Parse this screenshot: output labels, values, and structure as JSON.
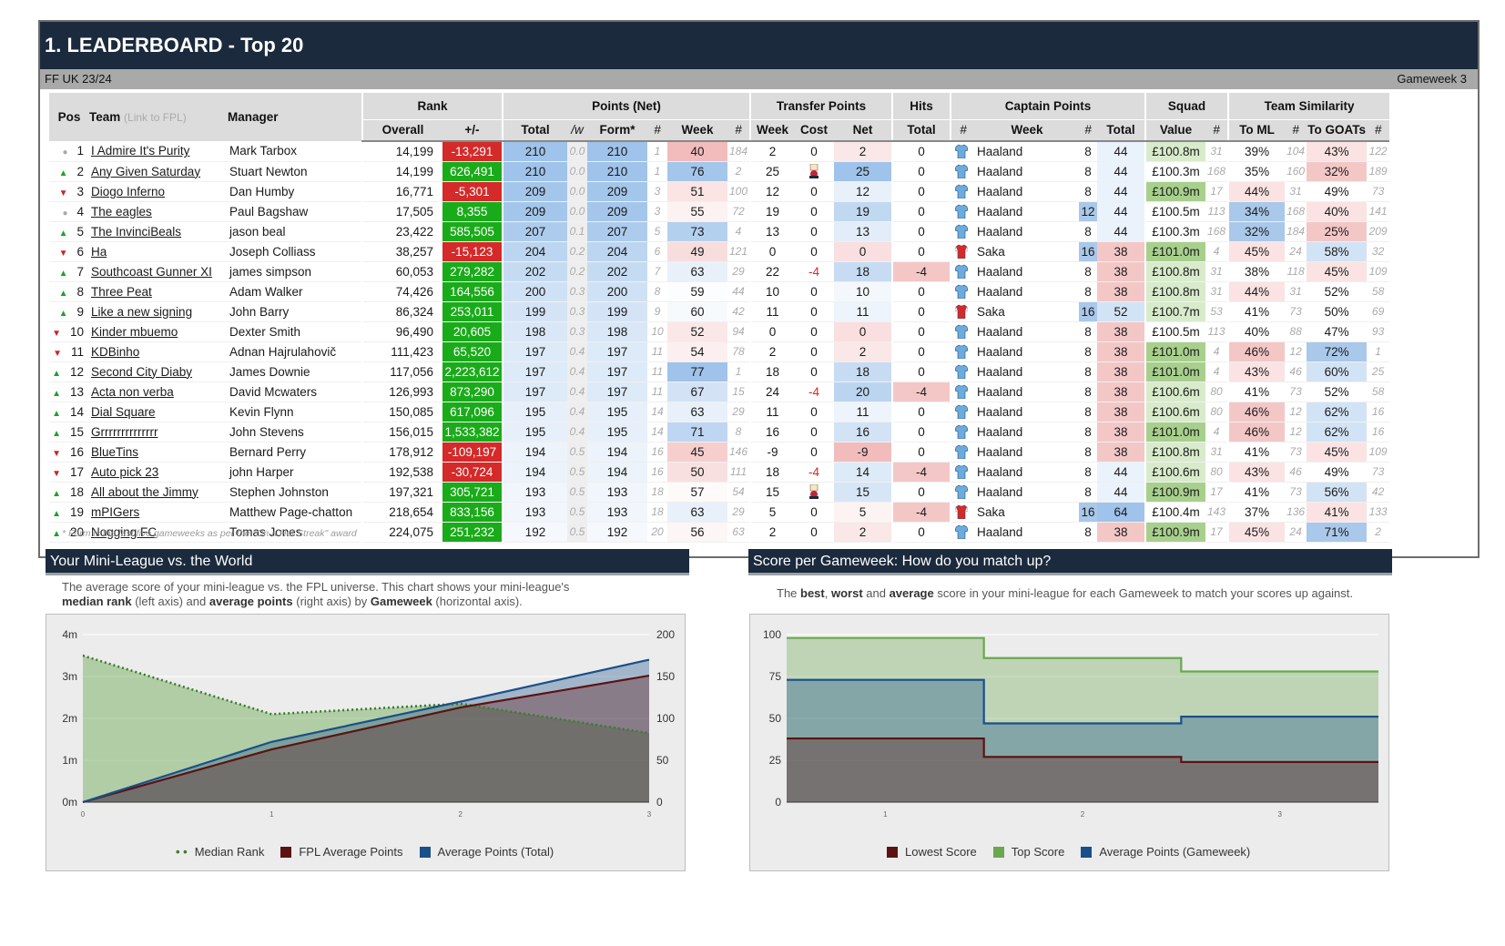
{
  "header": {
    "title": "1. LEADERBOARD - Top 20",
    "league": "FF UK 23/24",
    "gameweek": "Gameweek 3"
  },
  "columns": {
    "pos": "Pos",
    "team": "Team",
    "team_hint": "(Link to FPL)",
    "manager": "Manager",
    "rank": "Rank",
    "overall": "Overall",
    "plusminus": "+/-",
    "points": "Points (Net)",
    "total": "Total",
    "per_w": "/w",
    "form": "Form*",
    "hash": "#",
    "week": "Week",
    "transfer": "Transfer Points",
    "t_week": "Week",
    "t_cost": "Cost",
    "t_net": "Net",
    "hits": "Hits",
    "hits_total": "Total",
    "captain": "Captain Points",
    "c_week": "Week",
    "c_total": "Total",
    "squad": "Squad",
    "value": "Value",
    "similarity": "Team Similarity",
    "to_ml": "To ML",
    "to_goats": "To GOATs"
  },
  "rows": [
    {
      "pos": "1",
      "mv": "eq",
      "team": "I Admire It's Purity",
      "manager": "Mark Tarbox",
      "overall": "14,199",
      "delta": "-13,291",
      "total": "210",
      "pw": "0.0",
      "form": "210",
      "fr": "1",
      "week": "40",
      "wr": "184",
      "tw": "2",
      "tc": "0",
      "tn": "2",
      "hits": "0",
      "cap": "Haaland",
      "cw": "8",
      "ct": "44",
      "val": "£100.8m",
      "vr": "31",
      "ml": "39%",
      "mlr": "104",
      "gt": "43%",
      "gtr": "122"
    },
    {
      "pos": "2",
      "mv": "up",
      "team": "Any Given Saturday",
      "manager": "Stuart Newton",
      "overall": "14,199",
      "delta": "626,491",
      "total": "210",
      "pw": "0.0",
      "form": "210",
      "fr": "1",
      "week": "76",
      "wr": "2",
      "tw": "25",
      "tc": "wc",
      "tn": "25",
      "hits": "0",
      "cap": "Haaland",
      "cw": "8",
      "ct": "44",
      "val": "£100.3m",
      "vr": "168",
      "ml": "35%",
      "mlr": "160",
      "gt": "32%",
      "gtr": "189"
    },
    {
      "pos": "3",
      "mv": "dn",
      "team": "Diogo Inferno",
      "manager": "Dan Humby",
      "overall": "16,771",
      "delta": "-5,301",
      "total": "209",
      "pw": "0.0",
      "form": "209",
      "fr": "3",
      "week": "51",
      "wr": "100",
      "tw": "12",
      "tc": "0",
      "tn": "12",
      "hits": "0",
      "cap": "Haaland",
      "cw": "8",
      "ct": "44",
      "val": "£100.9m",
      "vr": "17",
      "ml": "44%",
      "mlr": "31",
      "gt": "49%",
      "gtr": "73"
    },
    {
      "pos": "4",
      "mv": "eq",
      "team": "The eagles",
      "manager": "Paul Bagshaw",
      "overall": "17,505",
      "delta": "8,355",
      "total": "209",
      "pw": "0.0",
      "form": "209",
      "fr": "3",
      "week": "55",
      "wr": "72",
      "tw": "19",
      "tc": "0",
      "tn": "19",
      "hits": "0",
      "cap": "Haaland",
      "cw": "12",
      "ct": "44",
      "val": "£100.5m",
      "vr": "113",
      "ml": "34%",
      "mlr": "168",
      "gt": "40%",
      "gtr": "141"
    },
    {
      "pos": "5",
      "mv": "up",
      "team": "The InvinciBeals",
      "manager": "jason beal",
      "overall": "23,422",
      "delta": "585,505",
      "total": "207",
      "pw": "0.1",
      "form": "207",
      "fr": "5",
      "week": "73",
      "wr": "4",
      "tw": "13",
      "tc": "0",
      "tn": "13",
      "hits": "0",
      "cap": "Haaland",
      "cw": "8",
      "ct": "44",
      "val": "£100.3m",
      "vr": "168",
      "ml": "32%",
      "mlr": "184",
      "gt": "25%",
      "gtr": "209"
    },
    {
      "pos": "6",
      "mv": "dn",
      "team": "Ha",
      "manager": "Joseph Colliass",
      "overall": "38,257",
      "delta": "-15,123",
      "total": "204",
      "pw": "0.2",
      "form": "204",
      "fr": "6",
      "week": "49",
      "wr": "121",
      "tw": "0",
      "tc": "0",
      "tn": "0",
      "hits": "0",
      "cap": "Saka",
      "cw": "16",
      "ct": "38",
      "val": "£101.0m",
      "vr": "4",
      "ml": "45%",
      "mlr": "24",
      "gt": "58%",
      "gtr": "32"
    },
    {
      "pos": "7",
      "mv": "up",
      "team": "Southcoast Gunner XI",
      "manager": "james simpson",
      "overall": "60,053",
      "delta": "279,282",
      "total": "202",
      "pw": "0.2",
      "form": "202",
      "fr": "7",
      "week": "63",
      "wr": "29",
      "tw": "22",
      "tc": "-4",
      "tn": "18",
      "hits": "-4",
      "cap": "Haaland",
      "cw": "8",
      "ct": "38",
      "val": "£100.8m",
      "vr": "31",
      "ml": "38%",
      "mlr": "118",
      "gt": "45%",
      "gtr": "109"
    },
    {
      "pos": "8",
      "mv": "up",
      "team": "Three Peat",
      "manager": "Adam Walker",
      "overall": "74,426",
      "delta": "164,556",
      "total": "200",
      "pw": "0.3",
      "form": "200",
      "fr": "8",
      "week": "59",
      "wr": "44",
      "tw": "10",
      "tc": "0",
      "tn": "10",
      "hits": "0",
      "cap": "Haaland",
      "cw": "8",
      "ct": "38",
      "val": "£100.8m",
      "vr": "31",
      "ml": "44%",
      "mlr": "31",
      "gt": "52%",
      "gtr": "58"
    },
    {
      "pos": "9",
      "mv": "up",
      "team": "Like a new signing",
      "manager": "John Barry",
      "overall": "86,324",
      "delta": "253,011",
      "total": "199",
      "pw": "0.3",
      "form": "199",
      "fr": "9",
      "week": "60",
      "wr": "42",
      "tw": "11",
      "tc": "0",
      "tn": "11",
      "hits": "0",
      "cap": "Saka",
      "cw": "16",
      "ct": "52",
      "val": "£100.7m",
      "vr": "53",
      "ml": "41%",
      "mlr": "73",
      "gt": "50%",
      "gtr": "69"
    },
    {
      "pos": "10",
      "mv": "dn",
      "team": "Kinder mbuemo",
      "manager": "Dexter Smith",
      "overall": "96,490",
      "delta": "20,605",
      "total": "198",
      "pw": "0.3",
      "form": "198",
      "fr": "10",
      "week": "52",
      "wr": "94",
      "tw": "0",
      "tc": "0",
      "tn": "0",
      "hits": "0",
      "cap": "Haaland",
      "cw": "8",
      "ct": "38",
      "val": "£100.5m",
      "vr": "113",
      "ml": "40%",
      "mlr": "88",
      "gt": "47%",
      "gtr": "93"
    },
    {
      "pos": "11",
      "mv": "dn",
      "team": "KDBinho",
      "manager": "Adnan Hajrulahovič",
      "overall": "111,423",
      "delta": "65,520",
      "total": "197",
      "pw": "0.4",
      "form": "197",
      "fr": "11",
      "week": "54",
      "wr": "78",
      "tw": "2",
      "tc": "0",
      "tn": "2",
      "hits": "0",
      "cap": "Haaland",
      "cw": "8",
      "ct": "38",
      "val": "£101.0m",
      "vr": "4",
      "ml": "46%",
      "mlr": "12",
      "gt": "72%",
      "gtr": "1"
    },
    {
      "pos": "12",
      "mv": "up",
      "team": "Second City Diaby",
      "manager": "James Downie",
      "overall": "117,056",
      "delta": "2,223,612",
      "total": "197",
      "pw": "0.4",
      "form": "197",
      "fr": "11",
      "week": "77",
      "wr": "1",
      "tw": "18",
      "tc": "0",
      "tn": "18",
      "hits": "0",
      "cap": "Haaland",
      "cw": "8",
      "ct": "38",
      "val": "£101.0m",
      "vr": "4",
      "ml": "43%",
      "mlr": "46",
      "gt": "60%",
      "gtr": "25"
    },
    {
      "pos": "13",
      "mv": "up",
      "team": "Acta non verba",
      "manager": "David Mcwaters",
      "overall": "126,993",
      "delta": "873,290",
      "total": "197",
      "pw": "0.4",
      "form": "197",
      "fr": "11",
      "week": "67",
      "wr": "15",
      "tw": "24",
      "tc": "-4",
      "tn": "20",
      "hits": "-4",
      "cap": "Haaland",
      "cw": "8",
      "ct": "38",
      "val": "£100.6m",
      "vr": "80",
      "ml": "41%",
      "mlr": "73",
      "gt": "52%",
      "gtr": "58"
    },
    {
      "pos": "14",
      "mv": "up",
      "team": "Dial Square",
      "manager": "Kevin Flynn",
      "overall": "150,085",
      "delta": "617,096",
      "total": "195",
      "pw": "0.4",
      "form": "195",
      "fr": "14",
      "week": "63",
      "wr": "29",
      "tw": "11",
      "tc": "0",
      "tn": "11",
      "hits": "0",
      "cap": "Haaland",
      "cw": "8",
      "ct": "38",
      "val": "£100.6m",
      "vr": "80",
      "ml": "46%",
      "mlr": "12",
      "gt": "62%",
      "gtr": "16"
    },
    {
      "pos": "15",
      "mv": "up",
      "team": "Grrrrrrrrrrrrrr",
      "manager": "John Stevens",
      "overall": "156,015",
      "delta": "1,533,382",
      "total": "195",
      "pw": "0.4",
      "form": "195",
      "fr": "14",
      "week": "71",
      "wr": "8",
      "tw": "16",
      "tc": "0",
      "tn": "16",
      "hits": "0",
      "cap": "Haaland",
      "cw": "8",
      "ct": "38",
      "val": "£101.0m",
      "vr": "4",
      "ml": "46%",
      "mlr": "12",
      "gt": "62%",
      "gtr": "16"
    },
    {
      "pos": "16",
      "mv": "dn",
      "team": "BlueTins",
      "manager": "Bernard Perry",
      "overall": "178,912",
      "delta": "-109,197",
      "total": "194",
      "pw": "0.5",
      "form": "194",
      "fr": "16",
      "week": "45",
      "wr": "146",
      "tw": "-9",
      "tc": "0",
      "tn": "-9",
      "hits": "0",
      "cap": "Haaland",
      "cw": "8",
      "ct": "38",
      "val": "£100.8m",
      "vr": "31",
      "ml": "41%",
      "mlr": "73",
      "gt": "45%",
      "gtr": "109"
    },
    {
      "pos": "17",
      "mv": "dn",
      "team": "Auto pick 23",
      "manager": "john Harper",
      "overall": "192,538",
      "delta": "-30,724",
      "total": "194",
      "pw": "0.5",
      "form": "194",
      "fr": "16",
      "week": "50",
      "wr": "111",
      "tw": "18",
      "tc": "-4",
      "tn": "14",
      "hits": "-4",
      "cap": "Haaland",
      "cw": "8",
      "ct": "44",
      "val": "£100.6m",
      "vr": "80",
      "ml": "43%",
      "mlr": "46",
      "gt": "49%",
      "gtr": "73"
    },
    {
      "pos": "18",
      "mv": "up",
      "team": "All about the Jimmy",
      "manager": "Stephen Johnston",
      "overall": "197,321",
      "delta": "305,721",
      "total": "193",
      "pw": "0.5",
      "form": "193",
      "fr": "18",
      "week": "57",
      "wr": "54",
      "tw": "15",
      "tc": "wc",
      "tn": "15",
      "hits": "0",
      "cap": "Haaland",
      "cw": "8",
      "ct": "44",
      "val": "£100.9m",
      "vr": "17",
      "ml": "41%",
      "mlr": "73",
      "gt": "56%",
      "gtr": "42"
    },
    {
      "pos": "19",
      "mv": "up",
      "team": "mPIGers",
      "manager": "Matthew Page-chatton",
      "overall": "218,654",
      "delta": "833,156",
      "total": "193",
      "pw": "0.5",
      "form": "193",
      "fr": "18",
      "week": "63",
      "wr": "29",
      "tw": "5",
      "tc": "0",
      "tn": "5",
      "hits": "-4",
      "cap": "Saka",
      "cw": "16",
      "ct": "64",
      "val": "£100.4m",
      "vr": "143",
      "ml": "37%",
      "mlr": "136",
      "gt": "41%",
      "gtr": "133"
    },
    {
      "pos": "20",
      "mv": "up",
      "team": "Nogging FC",
      "manager": "Tomas Jones",
      "overall": "224,075",
      "delta": "251,232",
      "total": "192",
      "pw": "0.5",
      "form": "192",
      "fr": "20",
      "week": "56",
      "wr": "63",
      "tw": "2",
      "tc": "0",
      "tn": "2",
      "hits": "0",
      "cap": "Haaland",
      "cw": "8",
      "ct": "38",
      "val": "£100.9m",
      "vr": "17",
      "ml": "45%",
      "mlr": "24",
      "gt": "71%",
      "gtr": "2"
    }
  ],
  "footnote": "* Form is the last five gameweeks as per the \"On a Hot Streak\" award",
  "panel_left": {
    "title": "Your Mini-League vs. the World",
    "desc_a": "The average score of your mini-league vs. the FPL universe. This chart shows your mini-league's",
    "desc_b1": "median rank",
    "desc_b2": " (left axis) and ",
    "desc_b3": "average points",
    "desc_b4": " (right axis) by ",
    "desc_b5": "Gameweek",
    "desc_b6": " (horizontal axis)."
  },
  "panel_right": {
    "title": "Score per Gameweek: How do you match up?",
    "desc1": "The ",
    "desc2": "best",
    "desc3": ", ",
    "desc4": "worst",
    "desc5": " and ",
    "desc6": "average",
    "desc7": " score in your mini-league for each Gameweek to match your scores up against."
  },
  "colors": {
    "navy": "#1b2a3d",
    "green": "#1aab1a",
    "red": "#d42a2a",
    "blue": "#a9c8ea",
    "pink": "#f4c7c7",
    "leaf": "#b7d7a8"
  },
  "chart_data": [
    {
      "type": "area",
      "x": [
        0,
        1,
        2,
        3
      ],
      "xticks": [
        "0",
        "1",
        "2",
        "3"
      ],
      "series": [
        {
          "name": "Median Rank",
          "axis": "left",
          "values": [
            3500000,
            2100000,
            2350000,
            1650000
          ],
          "style": "dotted",
          "color": "#3a7d2a"
        },
        {
          "name": "FPL Average Points",
          "axis": "right",
          "values": [
            0,
            63,
            113,
            151
          ],
          "color": "#5c1212"
        },
        {
          "name": "Average Points (Total)",
          "axis": "right",
          "values": [
            0,
            72,
            120,
            170
          ],
          "color": "#1a4f8a"
        }
      ],
      "yleft": {
        "ticks": [
          "0m",
          "1m",
          "2m",
          "3m",
          "4m"
        ],
        "range": [
          0,
          4000000
        ]
      },
      "yright": {
        "ticks": [
          "0",
          "50",
          "100",
          "150",
          "200"
        ],
        "range": [
          0,
          200
        ]
      }
    },
    {
      "type": "area",
      "x": [
        1,
        2,
        3
      ],
      "xticks": [
        "1",
        "2",
        "3"
      ],
      "series": [
        {
          "name": "Lowest Score",
          "values": [
            38,
            27,
            24
          ],
          "color": "#5c1212"
        },
        {
          "name": "Top Score",
          "values": [
            98,
            86,
            78
          ],
          "color": "#6aa84f"
        },
        {
          "name": "Average Points (Gameweek)",
          "values": [
            73,
            47,
            51
          ],
          "color": "#1a4f8a"
        }
      ],
      "yaxis": {
        "ticks": [
          "0",
          "25",
          "50",
          "75",
          "100"
        ],
        "range": [
          0,
          100
        ]
      }
    }
  ]
}
